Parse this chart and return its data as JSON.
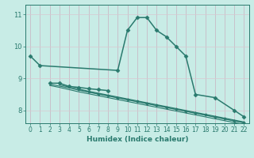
{
  "xlabel": "Humidex (Indice chaleur)",
  "bg_color": "#c8ece6",
  "grid_color": "#aad8d0",
  "line_color": "#2a7a6e",
  "x_ticks": [
    0,
    1,
    2,
    3,
    4,
    5,
    6,
    7,
    8,
    9,
    10,
    11,
    12,
    13,
    14,
    15,
    16,
    17,
    18,
    19,
    20,
    21,
    22
  ],
  "ylim": [
    7.6,
    11.3
  ],
  "xlim": [
    -0.5,
    22.5
  ],
  "yticks": [
    8,
    9,
    10,
    11
  ],
  "series": [
    {
      "x": [
        0,
        1,
        9,
        10,
        11,
        12,
        13,
        14,
        15,
        16,
        17,
        19,
        21,
        22
      ],
      "y": [
        9.7,
        9.4,
        9.25,
        10.5,
        10.9,
        10.9,
        10.5,
        10.3,
        10.0,
        9.7,
        8.5,
        8.4,
        8.0,
        7.8
      ],
      "marker": "D",
      "markersize": 2.5,
      "linewidth": 1.1,
      "connected": true
    },
    {
      "x": [
        2,
        3,
        4,
        5,
        6,
        7,
        8
      ],
      "y": [
        8.85,
        8.85,
        8.75,
        8.72,
        8.68,
        8.65,
        8.62
      ],
      "marker": "D",
      "markersize": 2.5,
      "linewidth": 1.1,
      "connected": true
    },
    {
      "x": [
        2,
        3,
        4,
        5,
        6,
        7,
        8,
        9,
        10,
        11,
        12,
        13,
        14,
        15,
        16,
        17,
        18,
        19,
        20,
        21,
        22
      ],
      "y": [
        8.78,
        8.72,
        8.65,
        8.58,
        8.52,
        8.46,
        8.4,
        8.34,
        8.28,
        8.22,
        8.16,
        8.1,
        8.04,
        7.98,
        7.92,
        7.86,
        7.8,
        7.74,
        7.68,
        7.62,
        7.56
      ],
      "marker": null,
      "markersize": 0,
      "linewidth": 0.8,
      "connected": true
    },
    {
      "x": [
        2,
        3,
        4,
        5,
        6,
        7,
        8,
        9,
        10,
        11,
        12,
        13,
        14,
        15,
        16,
        17,
        18,
        19,
        20,
        21,
        22
      ],
      "y": [
        8.82,
        8.76,
        8.7,
        8.63,
        8.57,
        8.51,
        8.45,
        8.39,
        8.33,
        8.27,
        8.21,
        8.15,
        8.09,
        8.03,
        7.97,
        7.91,
        7.85,
        7.79,
        7.73,
        7.67,
        7.61
      ],
      "marker": null,
      "markersize": 0,
      "linewidth": 0.8,
      "connected": true
    },
    {
      "x": [
        3,
        4,
        5,
        6,
        7,
        8,
        9,
        10,
        11,
        12,
        13,
        14,
        15,
        16,
        17,
        18,
        19,
        20,
        21,
        22
      ],
      "y": [
        8.8,
        8.73,
        8.67,
        8.6,
        8.54,
        8.48,
        8.42,
        8.36,
        8.3,
        8.24,
        8.18,
        8.12,
        8.06,
        8.0,
        7.94,
        7.88,
        7.82,
        7.76,
        7.7,
        7.64
      ],
      "marker": null,
      "markersize": 0,
      "linewidth": 0.8,
      "connected": true
    },
    {
      "x": [
        5,
        6,
        7,
        8,
        9,
        10,
        11,
        12,
        13,
        14,
        15,
        16,
        17,
        18,
        19,
        20,
        21,
        22
      ],
      "y": [
        8.65,
        8.58,
        8.52,
        8.46,
        8.4,
        8.34,
        8.28,
        8.22,
        8.16,
        8.1,
        8.04,
        7.98,
        7.92,
        7.86,
        7.8,
        7.74,
        7.68,
        7.62
      ],
      "marker": "D",
      "markersize": 1.8,
      "linewidth": 0.7,
      "connected": true
    }
  ]
}
